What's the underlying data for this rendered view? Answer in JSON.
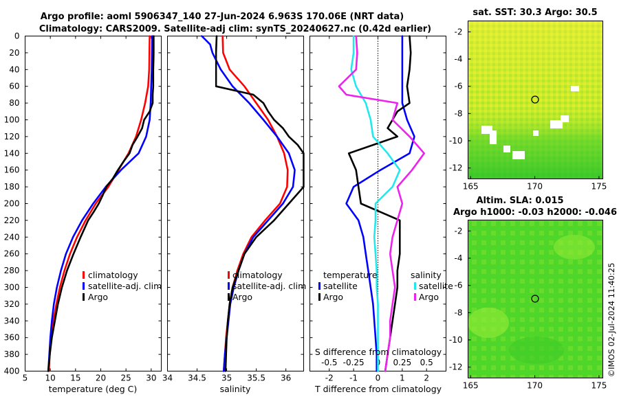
{
  "titles": {
    "line1": "Argo profile: aoml 5906347_140 27-Jun-2024 6.963S 170.06E (NRT data)",
    "line2": "Climatology: CARS2009. Satellite-adj clim: synTS_20240627.nc (0.42d earlier)",
    "sst_map": "sat. SST: 30.3 Argo: 30.5",
    "sla_line1": "Altim. SLA: 0.015",
    "sla_line2": "Argo h1000: -0.03 h2000: -0.046",
    "watermark": "©IMOS 02-Jul-2024 11:40:25"
  },
  "colors": {
    "climatology": "#ff0000",
    "satellite": "#0000ff",
    "argo": "#000000",
    "salinity_sat": "#22e8ee",
    "salinity_argo": "#ee22ee"
  },
  "chart_data": [
    {
      "type": "line",
      "id": "temperature",
      "xlabel": "temperature (deg C)",
      "ylabel": "",
      "xlim": [
        5,
        32
      ],
      "ylim": [
        400,
        0
      ],
      "xticks": [
        "5",
        "10",
        "15",
        "20",
        "25",
        "30"
      ],
      "yticks": [
        "0",
        "20",
        "40",
        "60",
        "80",
        "100",
        "120",
        "140",
        "160",
        "180",
        "200",
        "220",
        "240",
        "260",
        "280",
        "300",
        "320",
        "340",
        "360",
        "380",
        "400"
      ],
      "legend": [
        "climatology",
        "satellite-adj. clim",
        "Argo"
      ],
      "series": [
        {
          "name": "climatology",
          "color": "#ff0000",
          "depth": [
            0,
            40,
            60,
            80,
            100,
            120,
            140,
            160,
            180,
            200,
            220,
            240,
            260,
            280,
            300,
            320,
            340,
            360,
            380,
            400
          ],
          "values": [
            29.7,
            29.6,
            29.4,
            28.8,
            28.0,
            27.0,
            25.5,
            23.5,
            21.5,
            19.0,
            17.0,
            15.3,
            13.9,
            12.8,
            11.9,
            11.2,
            10.6,
            10.2,
            9.9,
            9.7
          ]
        },
        {
          "name": "satellite-adj. clim",
          "color": "#0000ff",
          "depth": [
            0,
            40,
            60,
            80,
            100,
            120,
            140,
            160,
            180,
            200,
            220,
            240,
            260,
            280,
            300,
            320,
            340,
            360,
            380,
            400
          ],
          "values": [
            30.2,
            30.1,
            30.0,
            29.9,
            29.7,
            29.0,
            27.5,
            24.0,
            21.0,
            18.5,
            16.3,
            14.5,
            13.1,
            12.1,
            11.3,
            10.7,
            10.3,
            10.0,
            9.8,
            9.6
          ]
        },
        {
          "name": "Argo",
          "color": "#000000",
          "depth": [
            0,
            20,
            40,
            60,
            70,
            80,
            90,
            100,
            110,
            120,
            130,
            140,
            150,
            160,
            170,
            180,
            190,
            200,
            210,
            220,
            240,
            260,
            280,
            300,
            320,
            340,
            360,
            380,
            400
          ],
          "values": [
            30.5,
            30.5,
            30.4,
            30.4,
            30.3,
            30.3,
            29.7,
            28.6,
            28.2,
            27.3,
            26.3,
            25.7,
            24.5,
            23.4,
            22.4,
            21.1,
            20.4,
            19.6,
            18.6,
            17.5,
            16.0,
            14.6,
            13.3,
            12.3,
            11.5,
            10.9,
            10.3,
            9.9,
            9.6
          ]
        }
      ]
    },
    {
      "type": "line",
      "id": "salinity",
      "xlabel": "salinity",
      "xlim": [
        34,
        36.3
      ],
      "ylim": [
        400,
        0
      ],
      "xticks": [
        "34",
        "34.5",
        "35",
        "35.5",
        "36"
      ],
      "legend": [
        "climatology",
        "satellite-adj. clim",
        "Argo"
      ],
      "series": [
        {
          "name": "climatology",
          "color": "#ff0000",
          "depth": [
            0,
            20,
            40,
            60,
            80,
            100,
            120,
            140,
            160,
            180,
            200,
            220,
            240,
            260,
            280,
            300,
            320,
            340,
            360,
            380,
            400
          ],
          "values": [
            34.93,
            34.94,
            35.05,
            35.3,
            35.5,
            35.7,
            35.85,
            35.97,
            36.03,
            36.02,
            35.9,
            35.65,
            35.42,
            35.28,
            35.18,
            35.1,
            35.05,
            35.02,
            34.99,
            34.97,
            34.95
          ]
        },
        {
          "name": "satellite-adj. clim",
          "color": "#0000ff",
          "depth": [
            0,
            10,
            20,
            40,
            60,
            80,
            100,
            120,
            140,
            160,
            180,
            200,
            220,
            240,
            260,
            280,
            300,
            320,
            340,
            360,
            380,
            400
          ],
          "values": [
            34.58,
            34.72,
            34.76,
            34.9,
            35.1,
            35.38,
            35.62,
            35.85,
            36.05,
            36.15,
            36.12,
            35.95,
            35.7,
            35.45,
            35.3,
            35.2,
            35.12,
            35.06,
            35.03,
            35.0,
            34.97,
            34.95
          ]
        },
        {
          "name": "Argo",
          "color": "#000000",
          "depth": [
            0,
            20,
            40,
            60,
            70,
            80,
            90,
            100,
            110,
            120,
            130,
            140,
            160,
            180,
            200,
            220,
            240,
            260,
            280,
            300,
            320,
            340,
            360,
            380,
            400
          ],
          "values": [
            34.83,
            34.82,
            34.82,
            34.82,
            35.45,
            35.62,
            35.7,
            35.8,
            35.95,
            36.05,
            36.2,
            36.3,
            36.3,
            36.3,
            36.05,
            35.8,
            35.5,
            35.3,
            35.2,
            35.1,
            35.05,
            35.02,
            35.0,
            34.99,
            34.98
          ]
        }
      ]
    },
    {
      "type": "line",
      "id": "differences",
      "xlabel": "T difference from climatology",
      "xlabel_top": "S difference from climatology",
      "xlim": [
        -2.8,
        2.8
      ],
      "ylim": [
        400,
        0
      ],
      "xticks": [
        "-2",
        "-1",
        "0",
        "1",
        "2"
      ],
      "xticks_top": [
        "-0.5",
        "-0.25",
        "0",
        "0.25",
        "0.5"
      ],
      "legend_temperature": {
        "title": "temperature",
        "items": [
          "satellite",
          "Argo"
        ]
      },
      "legend_salinity": {
        "title": "salinity",
        "items": [
          "satellite",
          "Argo"
        ]
      },
      "series": [
        {
          "name": "temperature satellite",
          "color": "#0000ff",
          "depth": [
            0,
            40,
            60,
            80,
            100,
            120,
            140,
            160,
            180,
            200,
            220,
            240,
            260,
            280,
            300,
            320,
            340,
            360,
            380,
            400
          ],
          "values": [
            1.0,
            1.0,
            1.0,
            1.0,
            1.2,
            1.5,
            1.3,
            0.1,
            -1.0,
            -1.3,
            -0.8,
            -0.6,
            -0.5,
            -0.4,
            -0.3,
            -0.2,
            -0.15,
            -0.1,
            -0.05,
            -0.05
          ]
        },
        {
          "name": "temperature Argo",
          "color": "#000000",
          "depth": [
            0,
            20,
            40,
            60,
            80,
            90,
            100,
            110,
            120,
            140,
            160,
            180,
            200,
            210,
            220,
            240,
            260,
            280,
            300,
            320,
            340,
            360,
            380,
            400
          ],
          "values": [
            1.3,
            1.35,
            1.3,
            1.2,
            1.3,
            0.8,
            0.6,
            0.4,
            0.8,
            -1.2,
            -0.9,
            -0.8,
            -0.7,
            0.1,
            0.9,
            0.9,
            0.9,
            0.8,
            0.8,
            0.7,
            0.6,
            0.5,
            0.4,
            0.3
          ]
        },
        {
          "name": "salinity satellite",
          "color": "#22e8ee",
          "depth": [
            0,
            20,
            40,
            60,
            80,
            100,
            120,
            140,
            160,
            180,
            200,
            220,
            240,
            260,
            280,
            300,
            320,
            340,
            360,
            380,
            400
          ],
          "values": [
            -1.0,
            -1.0,
            -1.1,
            -0.9,
            -0.5,
            -0.3,
            -0.2,
            0.4,
            0.9,
            0.6,
            -0.1,
            -0.1,
            -0.15,
            -0.1,
            -0.05,
            -0.05,
            0,
            0,
            0,
            0,
            0
          ]
        },
        {
          "name": "salinity Argo",
          "color": "#ee22ee",
          "depth": [
            0,
            20,
            40,
            60,
            70,
            80,
            100,
            120,
            140,
            160,
            180,
            200,
            220,
            240,
            260,
            280,
            300,
            320,
            340,
            360,
            380,
            400
          ],
          "values": [
            -0.9,
            -0.85,
            -0.9,
            -1.6,
            -1.3,
            0.8,
            0.6,
            1.3,
            1.9,
            1.4,
            0.8,
            1.0,
            0.8,
            0.6,
            0.5,
            0.6,
            0.7,
            0.6,
            0.5,
            0.5,
            0.4,
            0.3
          ]
        }
      ]
    },
    {
      "type": "heatmap",
      "id": "sst_map",
      "xticks": [
        "165",
        "170",
        "175"
      ],
      "yticks": [
        "-2",
        "-4",
        "-6",
        "-8",
        "-10",
        "-12"
      ],
      "argo_position": {
        "lon": 170.06,
        "lat": -6.963
      }
    },
    {
      "type": "heatmap",
      "id": "sla_map",
      "xticks": [
        "165",
        "170",
        "175"
      ],
      "yticks": [
        "-2",
        "-4",
        "-6",
        "-8",
        "-10",
        "-12"
      ],
      "argo_position": {
        "lon": 170.06,
        "lat": -6.963
      }
    }
  ]
}
